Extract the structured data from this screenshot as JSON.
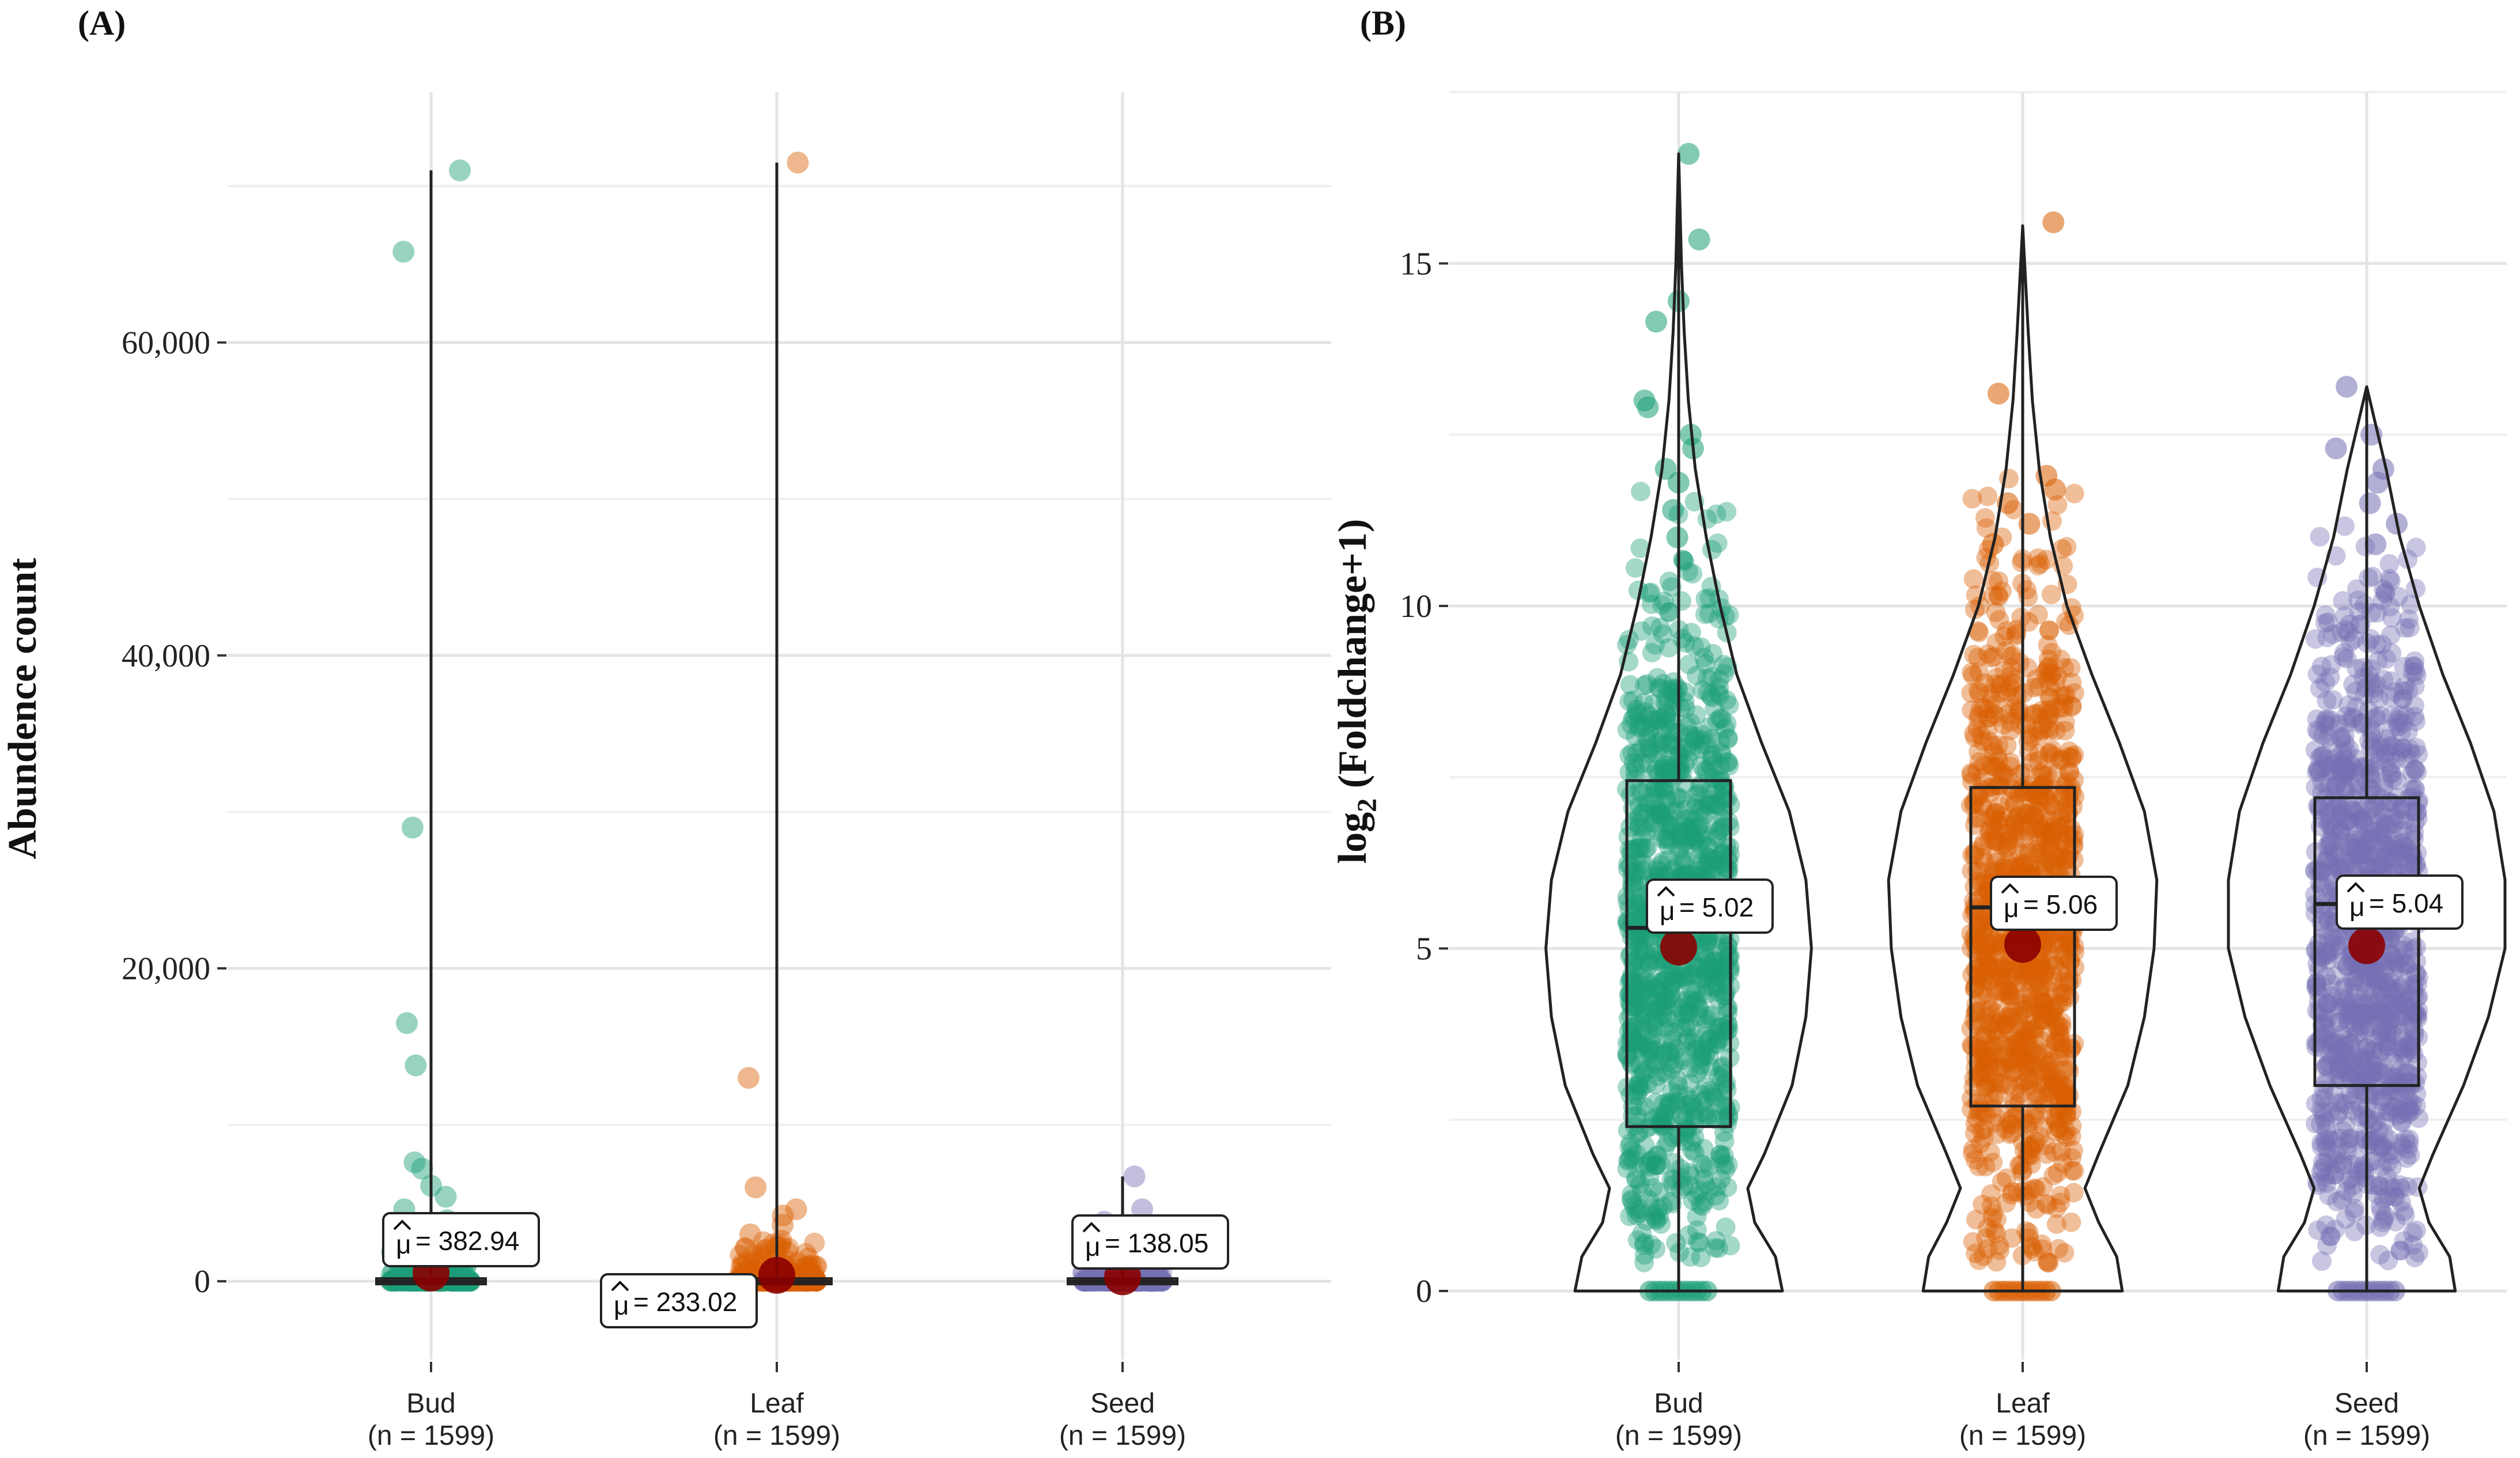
{
  "chart_data": [
    {
      "panel": "(A)",
      "type": "violin-box-scatter",
      "ylabel": "Abundence count",
      "ylim": [
        -5000,
        76000
      ],
      "yticks": [
        0,
        20000,
        40000,
        60000
      ],
      "ytick_labels": [
        "0",
        "20,000",
        "40,000",
        "60,000"
      ],
      "categories": [
        {
          "name": "Bud",
          "n": "(n = 1599)",
          "mean": 382.94,
          "mean_label": "= 382.94",
          "color": "#1b9e77",
          "max": 71000,
          "outliers": [
            71000,
            65800,
            29000,
            16500,
            13800,
            7600,
            7200,
            6100,
            5400,
            4600,
            3900,
            3100,
            2600
          ]
        },
        {
          "name": "Leaf",
          "n": "(n = 1599)",
          "mean": 233.02,
          "mean_label": "= 233.02",
          "color": "#d95f02",
          "max": 71500,
          "outliers": [
            71500,
            13000,
            6000,
            4600,
            4200,
            3600,
            3000,
            2600,
            2200
          ]
        },
        {
          "name": "Seed",
          "n": "(n = 1599)",
          "mean": 138.05,
          "mean_label": "= 138.05",
          "color": "#7570b3",
          "max": 6700,
          "outliers": [
            6700,
            4600,
            3800,
            2900,
            2300
          ]
        }
      ]
    },
    {
      "panel": "(B)",
      "type": "violin-box-scatter",
      "ylabel_main": "log",
      "ylabel_sub": "2",
      "ylabel_rest": " (Foldchange+1)",
      "ylim": [
        -1,
        17.5
      ],
      "yticks": [
        0,
        5,
        10,
        15
      ],
      "ytick_labels": [
        "0",
        "5",
        "10",
        "15"
      ],
      "categories": [
        {
          "name": "Bud",
          "n": "(n = 1599)",
          "mean": 5.02,
          "mean_label": "= 5.02",
          "color": "#1b9e77",
          "q1": 2.4,
          "median": 5.3,
          "q3": 7.45,
          "whisker_low": 0,
          "whisker_high": 16.6,
          "violin": [
            [
              0,
              0.75
            ],
            [
              0.5,
              0.7
            ],
            [
              1,
              0.55
            ],
            [
              1.5,
              0.5
            ],
            [
              2,
              0.62
            ],
            [
              3,
              0.82
            ],
            [
              4,
              0.92
            ],
            [
              5,
              0.96
            ],
            [
              6,
              0.92
            ],
            [
              7,
              0.8
            ],
            [
              8,
              0.6
            ],
            [
              9,
              0.42
            ],
            [
              10,
              0.3
            ],
            [
              11,
              0.2
            ],
            [
              12,
              0.12
            ],
            [
              13,
              0.07
            ],
            [
              14,
              0.04
            ],
            [
              15,
              0.02
            ],
            [
              16.6,
              0
            ]
          ],
          "high_points": [
            16.6,
            15.35,
            14.45,
            14.15,
            13.0,
            12.9,
            12.5,
            12.3,
            12.0,
            11.8,
            11.4,
            11.0
          ]
        },
        {
          "name": "Leaf",
          "n": "(n = 1599)",
          "mean": 5.06,
          "mean_label": "= 5.06",
          "color": "#d95f02",
          "q1": 2.7,
          "median": 5.6,
          "q3": 7.35,
          "whisker_low": 0,
          "whisker_high": 15.55,
          "violin": [
            [
              0,
              0.72
            ],
            [
              0.5,
              0.68
            ],
            [
              1,
              0.55
            ],
            [
              1.5,
              0.45
            ],
            [
              2,
              0.55
            ],
            [
              3,
              0.76
            ],
            [
              4,
              0.88
            ],
            [
              5,
              0.95
            ],
            [
              6,
              0.97
            ],
            [
              7,
              0.88
            ],
            [
              8,
              0.7
            ],
            [
              9,
              0.5
            ],
            [
              10,
              0.32
            ],
            [
              11,
              0.2
            ],
            [
              12,
              0.12
            ],
            [
              13,
              0.07
            ],
            [
              14,
              0.04
            ],
            [
              15.55,
              0
            ]
          ],
          "high_points": [
            15.6,
            13.1,
            11.9,
            11.7,
            11.5,
            11.2,
            10.9
          ]
        },
        {
          "name": "Seed",
          "n": "(n = 1599)",
          "mean": 5.04,
          "mean_label": "= 5.04",
          "color": "#7570b3",
          "q1": 3.0,
          "median": 5.65,
          "q3": 7.2,
          "whisker_low": 0,
          "whisker_high": 13.2,
          "violin": [
            [
              0,
              0.64
            ],
            [
              0.5,
              0.6
            ],
            [
              1,
              0.45
            ],
            [
              1.5,
              0.38
            ],
            [
              2,
              0.48
            ],
            [
              3,
              0.7
            ],
            [
              4,
              0.88
            ],
            [
              5,
              1.0
            ],
            [
              6,
              1.0
            ],
            [
              7,
              0.92
            ],
            [
              8,
              0.75
            ],
            [
              9,
              0.55
            ],
            [
              10,
              0.38
            ],
            [
              11,
              0.24
            ],
            [
              12,
              0.14
            ],
            [
              13.2,
              0
            ]
          ],
          "high_points": [
            13.2,
            12.5,
            12.3,
            12.0,
            11.8,
            11.5,
            11.2,
            10.9
          ]
        }
      ]
    }
  ]
}
